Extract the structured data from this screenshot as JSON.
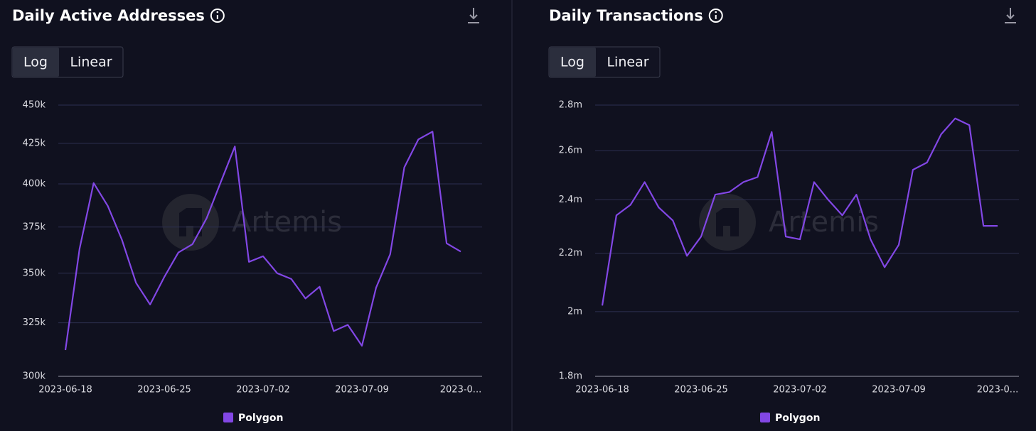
{
  "chart_data": [
    {
      "type": "line",
      "title": "Daily Active Addresses",
      "buttons": [
        "Log",
        "Linear"
      ],
      "watermark": "Artemis",
      "log_scale": true,
      "grid": true,
      "x": [
        "2023-06-18",
        "2023-06-19",
        "2023-06-20",
        "2023-06-21",
        "2023-06-22",
        "2023-06-23",
        "2023-06-24",
        "2023-06-25",
        "2023-06-26",
        "2023-06-27",
        "2023-06-28",
        "2023-06-29",
        "2023-06-30",
        "2023-07-01",
        "2023-07-02",
        "2023-07-03",
        "2023-07-04",
        "2023-07-05",
        "2023-07-06",
        "2023-07-07",
        "2023-07-08",
        "2023-07-09",
        "2023-07-10",
        "2023-07-11",
        "2023-07-12",
        "2023-07-13",
        "2023-07-14",
        "2023-07-15",
        "2023-07-16"
      ],
      "series": [
        {
          "name": "Polygon",
          "color": "#8247e5",
          "values": [
            312000,
            363000,
            400500,
            387000,
            368000,
            345000,
            334000,
            348000,
            361000,
            365500,
            380000,
            401000,
            423000,
            356000,
            359000,
            350000,
            347000,
            337000,
            343000,
            321000,
            324000,
            314000,
            342500,
            360000,
            410000,
            427500,
            432500,
            366000,
            361500
          ]
        }
      ],
      "ylim": [
        300000,
        450000
      ],
      "yticks": [
        {
          "value": 300000,
          "label": "300k"
        },
        {
          "value": 325000,
          "label": "325k"
        },
        {
          "value": 350000,
          "label": "350k"
        },
        {
          "value": 375000,
          "label": "375k"
        },
        {
          "value": 400000,
          "label": "400k"
        },
        {
          "value": 425000,
          "label": "425k"
        },
        {
          "value": 450000,
          "label": "450k"
        }
      ],
      "xticks": [
        "2023-06-18",
        "2023-06-25",
        "2023-07-02",
        "2023-07-09",
        {
          "value": "2023-07-16",
          "label": "2023-0..."
        }
      ]
    },
    {
      "type": "line",
      "title": "Daily Transactions",
      "buttons": [
        "Log",
        "Linear"
      ],
      "watermark": "Artemis",
      "log_scale": true,
      "grid": true,
      "x": [
        "2023-06-18",
        "2023-06-19",
        "2023-06-20",
        "2023-06-21",
        "2023-06-22",
        "2023-06-23",
        "2023-06-24",
        "2023-06-25",
        "2023-06-26",
        "2023-06-27",
        "2023-06-28",
        "2023-06-29",
        "2023-06-30",
        "2023-07-01",
        "2023-07-02",
        "2023-07-03",
        "2023-07-04",
        "2023-07-05",
        "2023-07-06",
        "2023-07-07",
        "2023-07-08",
        "2023-07-09",
        "2023-07-10",
        "2023-07-11",
        "2023-07-12",
        "2023-07-13",
        "2023-07-14",
        "2023-07-15",
        "2023-07-16"
      ],
      "series": [
        {
          "name": "Polygon",
          "color": "#8247e5",
          "values": [
            2020000,
            2340000,
            2380000,
            2470000,
            2370000,
            2320000,
            2190000,
            2260000,
            2420000,
            2430000,
            2470000,
            2490000,
            2680000,
            2260000,
            2250000,
            2470000,
            2400000,
            2340000,
            2420000,
            2250000,
            2150000,
            2230000,
            2520000,
            2550000,
            2670000,
            2740000,
            2710000,
            2300000,
            2300000
          ]
        }
      ],
      "ylim": [
        1800000,
        2800000
      ],
      "yticks": [
        {
          "value": 1800000,
          "label": "1.8m"
        },
        {
          "value": 2000000,
          "label": "2m"
        },
        {
          "value": 2200000,
          "label": "2.2m"
        },
        {
          "value": 2400000,
          "label": "2.4m"
        },
        {
          "value": 2600000,
          "label": "2.6m"
        },
        {
          "value": 2800000,
          "label": "2.8m"
        }
      ],
      "xticks": [
        "2023-06-18",
        "2023-06-25",
        "2023-07-02",
        "2023-07-09",
        {
          "value": "2023-07-16",
          "label": "2023-0..."
        }
      ]
    }
  ]
}
